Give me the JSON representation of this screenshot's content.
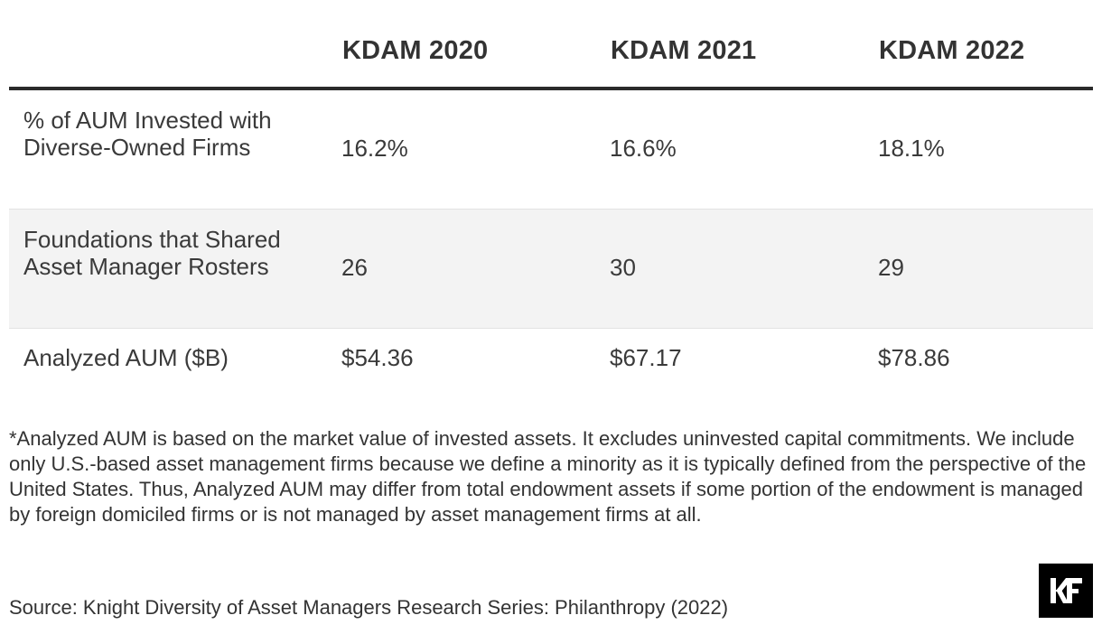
{
  "table": {
    "columns": [
      "KDAM 2020",
      "KDAM 2021",
      "KDAM 2022"
    ],
    "rows": [
      {
        "label": "% of AUM Invested with Diverse-Owned Firms",
        "values": [
          "16.2%",
          "16.6%",
          "18.1%"
        ]
      },
      {
        "label": "Foundations that Shared Asset Manager Rosters",
        "values": [
          "26",
          "30",
          "29"
        ]
      },
      {
        "label": "Analyzed AUM ($B)",
        "values": [
          "$54.36",
          "$67.17",
          "$78.86"
        ]
      }
    ]
  },
  "footnote": "*Analyzed AUM is based on the market value of invested assets. It excludes uninvested capital commitments. We include only U.S.-based asset management firms because we define a minority as it is typically defined from the perspective of the United States. Thus, Analyzed AUM may differ from total endowment assets if some portion of the endowment is managed by foreign domiciled firms or is not managed by asset management firms at all.",
  "source": "Source: Knight Diversity of Asset Managers Research Series: Philanthropy (2022)",
  "logo": {
    "text": "KF",
    "icon": "knight-foundation-logo",
    "background": "#000000",
    "foreground": "#ffffff"
  }
}
